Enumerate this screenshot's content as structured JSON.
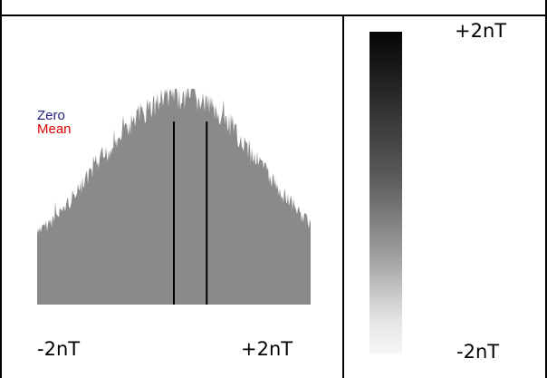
{
  "histogram": {
    "legend_zero": "Zero",
    "legend_mean": "Mean",
    "axis_min_label": "-2nT",
    "axis_max_label": "+2nT",
    "zero_position": 0.5,
    "mean_position": 0.62
  },
  "color_scale": {
    "top_label": "+2nT",
    "bottom_label": "-2nT"
  },
  "colors": {
    "histogram_fill": "#8a8a8a",
    "zero_line": "#000000",
    "mean_line": "#000000",
    "legend_zero": "#20207a",
    "legend_mean": "#e00000"
  }
}
